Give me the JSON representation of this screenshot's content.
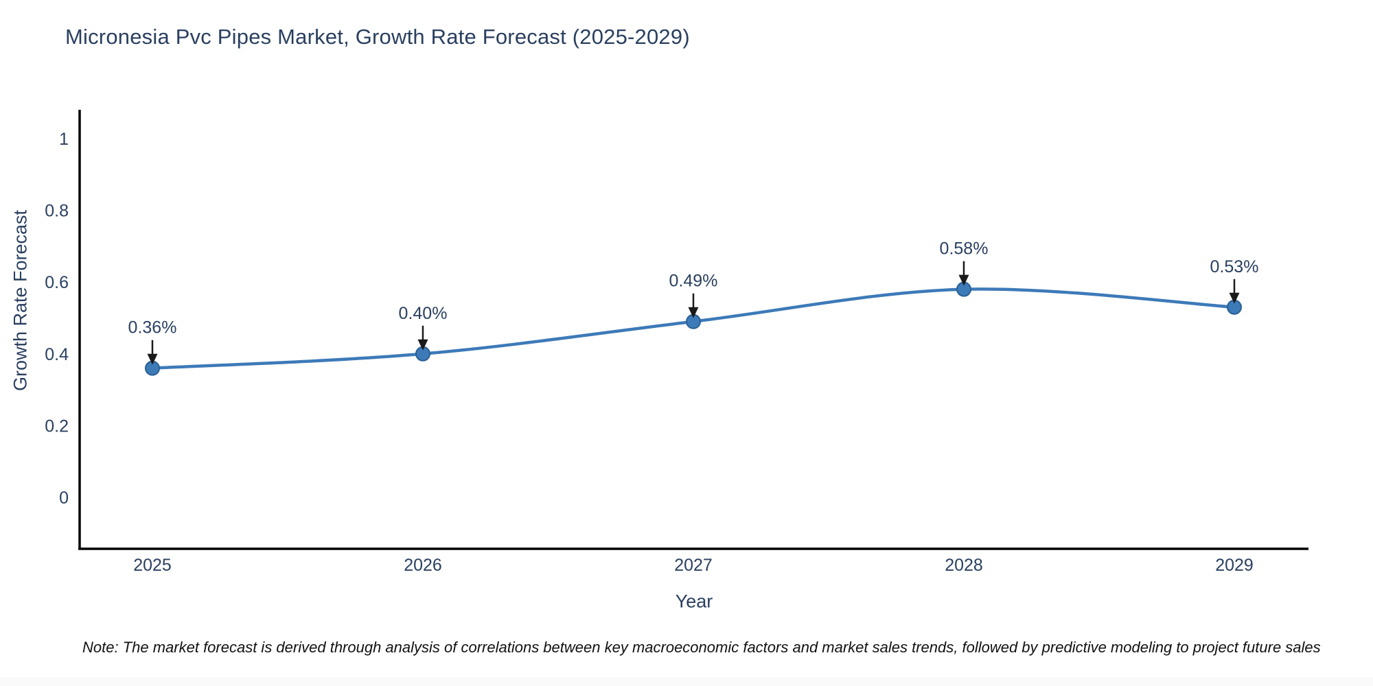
{
  "chart_data": {
    "type": "line",
    "title": "Micronesia Pvc Pipes Market, Growth Rate Forecast (2025-2029)",
    "xlabel": "Year",
    "ylabel": "Growth Rate Forecast",
    "categories": [
      "2025",
      "2026",
      "2027",
      "2028",
      "2029"
    ],
    "values": [
      0.36,
      0.4,
      0.49,
      0.58,
      0.53
    ],
    "point_labels": [
      "0.36%",
      "0.40%",
      "0.49%",
      "0.58%",
      "0.53%"
    ],
    "y_ticks": [
      0,
      0.2,
      0.4,
      0.6,
      0.8,
      1
    ],
    "y_tick_labels": [
      "0",
      "0.2",
      "0.4",
      "0.6",
      "0.8",
      "1"
    ],
    "ylim": [
      -0.14,
      1.08
    ],
    "grid": false,
    "legend": false,
    "line_smoothing": "spline",
    "colors": {
      "line": "#3d7ab8",
      "marker_fill": "#3d7ab8",
      "marker_edge": "#2a5f94",
      "axis_line": "#000000",
      "tick_text": "#2a3f5f",
      "annotation_text": "#2a3f5f",
      "arrow": "#1a1a1a"
    }
  },
  "note": "Note: The market forecast is derived through analysis of correlations between key macroeconomic factors and market sales trends, followed by predictive modeling to project future sales"
}
